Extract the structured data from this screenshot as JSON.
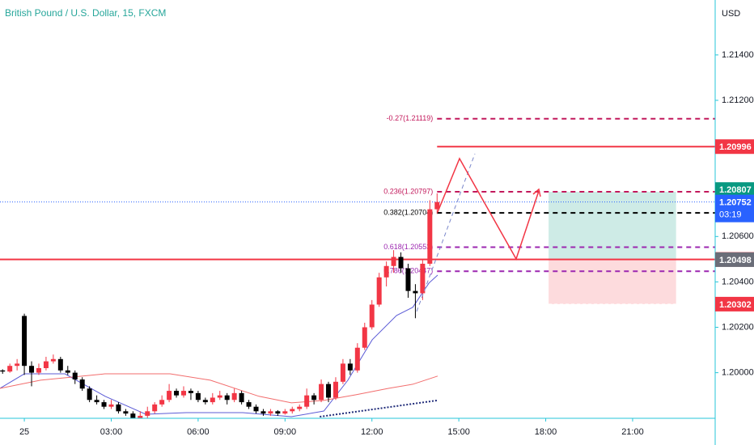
{
  "chart_data": {
    "type": "candlestick",
    "title": "British Pound / U.S. Dollar, 15, FXCM",
    "currency": "USD",
    "x": [
      -1.25,
      -1,
      -0.75,
      -0.5,
      -0.25,
      0,
      0.25,
      0.5,
      0.75,
      1,
      1.25,
      1.5,
      1.75,
      2,
      2.25,
      2.5,
      2.75,
      3,
      3.25,
      3.5,
      3.75,
      4,
      4.25,
      4.5,
      4.75,
      5,
      5.25,
      5.5,
      5.75,
      6,
      6.25,
      6.5,
      6.75,
      7,
      7.25,
      7.5,
      7.75,
      8,
      8.25,
      8.5,
      8.75,
      9,
      9.25,
      9.5,
      9.75,
      10,
      10.25,
      10.5,
      10.75,
      11,
      11.25,
      11.5,
      11.75,
      12,
      12.25,
      12.5,
      12.75,
      13,
      13.25,
      13.5,
      13.75,
      14,
      14.25
    ],
    "open": [
      1.1998,
      1.1999,
      1.2001,
      1.20005,
      1.2003,
      1.2025,
      1.2003,
      1.2,
      1.2002,
      1.2005,
      1.2006,
      1.2001,
      1.2,
      1.1997,
      1.1993,
      1.1988,
      1.1987,
      1.1985,
      1.1986,
      1.1983,
      1.1982,
      1.198,
      1.1981,
      1.1983,
      1.1986,
      1.1988,
      1.1992,
      1.199,
      1.1992,
      1.1991,
      1.1988,
      1.1987,
      1.1989,
      1.199,
      1.1988,
      1.1991,
      1.1987,
      1.1985,
      1.1983,
      1.1982,
      1.1983,
      1.1982,
      1.1983,
      1.1984,
      1.1985,
      1.199,
      1.1988,
      1.1995,
      1.1989,
      1.1996,
      1.2004,
      1.2001,
      1.2011,
      1.202,
      1.203,
      1.2042,
      1.2047,
      1.2051,
      1.2046,
      1.2036,
      1.2035,
      1.2048,
      1.2072
    ],
    "high": [
      1.2,
      1.2002,
      1.20015,
      1.2004,
      1.2006,
      1.2026,
      1.2005,
      1.2004,
      1.2007,
      1.2008,
      1.2007,
      1.2003,
      1.2001,
      1.1998,
      1.1994,
      1.199,
      1.1988,
      1.1988,
      1.1987,
      1.1984,
      1.1983,
      1.1983,
      1.1985,
      1.1987,
      1.199,
      1.1995,
      1.1993,
      1.1994,
      1.1993,
      1.1992,
      1.1989,
      1.1991,
      1.1992,
      1.1991,
      1.1993,
      1.1992,
      1.1988,
      1.1986,
      1.1984,
      1.1984,
      1.19835,
      1.1984,
      1.1985,
      1.1986,
      1.1993,
      1.1991,
      1.1997,
      1.1996,
      1.1998,
      1.2006,
      1.2006,
      1.2013,
      1.2022,
      1.2032,
      1.2044,
      1.2049,
      1.2054,
      1.2053,
      1.2048,
      1.2039,
      1.205,
      1.2076,
      1.2079
    ],
    "low": [
      1.1997,
      1.1998,
      1.19995,
      1.2,
      1.2001,
      1.1999,
      1.1994,
      1.1999,
      1.2001,
      1.2004,
      1.2,
      1.1999,
      1.1995,
      1.1992,
      1.1987,
      1.1986,
      1.1984,
      1.1984,
      1.1982,
      1.1981,
      1.1978,
      1.1979,
      1.198,
      1.1982,
      1.1985,
      1.1987,
      1.1989,
      1.1989,
      1.1988,
      1.1987,
      1.1986,
      1.1986,
      1.1988,
      1.1986,
      1.1987,
      1.1986,
      1.1984,
      1.1982,
      1.1981,
      1.1981,
      1.1981,
      1.19815,
      1.1982,
      1.1983,
      1.1984,
      1.1986,
      1.1987,
      1.1987,
      1.1988,
      1.1995,
      1.1999,
      1.2,
      1.201,
      1.2019,
      1.2029,
      1.2038,
      1.2044,
      1.2044,
      1.2033,
      1.2024,
      1.2032,
      1.2047,
      1.207
    ],
    "close": [
      1.1999,
      1.2001,
      1.20005,
      1.2003,
      1.2004,
      1.2003,
      1.2,
      1.2002,
      1.2005,
      1.2006,
      1.2001,
      1.2,
      1.1997,
      1.1993,
      1.1988,
      1.1987,
      1.1985,
      1.1986,
      1.1983,
      1.1982,
      1.198,
      1.1981,
      1.1983,
      1.1986,
      1.1988,
      1.1992,
      1.199,
      1.1992,
      1.1991,
      1.1988,
      1.1987,
      1.1989,
      1.199,
      1.1988,
      1.1991,
      1.1987,
      1.1985,
      1.1983,
      1.1982,
      1.1983,
      1.1982,
      1.1983,
      1.1984,
      1.1985,
      1.199,
      1.1988,
      1.1995,
      1.1989,
      1.1996,
      1.2004,
      1.2001,
      1.2011,
      1.202,
      1.203,
      1.2042,
      1.2047,
      1.2051,
      1.2046,
      1.2036,
      1.2035,
      1.2048,
      1.2072,
      1.20752
    ],
    "up_color": "#f23645",
    "down_color": "#000000",
    "moving_averages": [
      {
        "color": "#5b5bd6",
        "x": [
          -0.84,
          0,
          1.4,
          2.79,
          4.19,
          5.59,
          7.54,
          9.22,
          10.34,
          11.17,
          12.01,
          12.85,
          13.41,
          13.97,
          14.27
        ],
        "values": [
          1.19931,
          1.19995,
          1.19995,
          1.19896,
          1.19817,
          1.19824,
          1.19824,
          1.19806,
          1.19831,
          1.19967,
          1.20145,
          1.20252,
          1.20288,
          1.20395,
          1.2043
        ]
      },
      {
        "color": "#f26d6d",
        "x": [
          -0.84,
          0.56,
          2.79,
          5.03,
          6.42,
          8.1,
          9.22,
          10.34,
          11.45,
          12.57,
          13.41,
          14.27
        ],
        "values": [
          1.19931,
          1.19967,
          1.19995,
          1.19995,
          1.19967,
          1.19896,
          1.19867,
          1.19878,
          1.19903,
          1.19931,
          1.19949,
          1.19985
        ]
      },
      {
        "color": "#1e2a78",
        "dotted": true,
        "x": [
          10.2,
          14.27
        ],
        "values": [
          1.19806,
          1.19878
        ]
      }
    ],
    "levels": [
      {
        "label": "-0.27(1.21119)",
        "value": 1.21119,
        "color": "#c2185b",
        "dashed": true
      },
      {
        "label": "0.236(1.20797)",
        "value": 1.20797,
        "color": "#c2185b",
        "dashed": true
      },
      {
        "label": "0.382(1.20704)",
        "value": 1.20704,
        "color": "#000000",
        "dashed": true
      },
      {
        "label": "0.618(1.20553)",
        "value": 1.20553,
        "color": "#9c27b0",
        "dashed": true
      },
      {
        "label": "0.786(1.20447)",
        "value": 1.20447,
        "color": "#9c27b0",
        "dashed": true
      },
      {
        "value": 1.20996,
        "color": "#f23645",
        "dashed": false
      },
      {
        "value": 1.20499,
        "color": "#f23645",
        "dashed": false,
        "full_width": true
      }
    ],
    "position": {
      "x": [
        18.1,
        22.5
      ],
      "target": 1.20797,
      "entry": 1.20499,
      "stop": 1.20302
    },
    "price_tags": [
      {
        "value": 1.20996,
        "color": "#f23645"
      },
      {
        "value": 1.20807,
        "color": "#089981"
      },
      {
        "value": 1.20752,
        "color": "#2962ff",
        "countdown": "03:19"
      },
      {
        "value": 1.20499,
        "color": "#f23645"
      },
      {
        "value": 1.20498,
        "color": "#6a6d78"
      },
      {
        "value": 1.20302,
        "color": "#f23645"
      }
    ],
    "xlim": [
      -0.84,
      23.85
    ],
    "xticks": [
      {
        "value": 0,
        "label": "25"
      },
      {
        "value": 3,
        "label": "03:00"
      },
      {
        "value": 6,
        "label": "06:00"
      },
      {
        "value": 9,
        "label": "09:00"
      },
      {
        "value": 12,
        "label": "12:00"
      },
      {
        "value": 15,
        "label": "15:00"
      },
      {
        "value": 18,
        "label": "18:00"
      },
      {
        "value": 21,
        "label": "21:00"
      }
    ],
    "ylim": [
      1.19799,
      1.21642
    ],
    "yticks": [
      {
        "value": 1.214,
        "label": "1.21400"
      },
      {
        "value": 1.212,
        "label": "1.21200"
      },
      {
        "value": 1.21,
        "label": "1.21000"
      },
      {
        "value": 1.208,
        "label": "1.20800"
      },
      {
        "value": 1.206,
        "label": "1.20600"
      },
      {
        "value": 1.204,
        "label": "1.20400"
      },
      {
        "value": 1.202,
        "label": "1.20200"
      },
      {
        "value": 1.2,
        "label": "1.20000"
      }
    ]
  }
}
